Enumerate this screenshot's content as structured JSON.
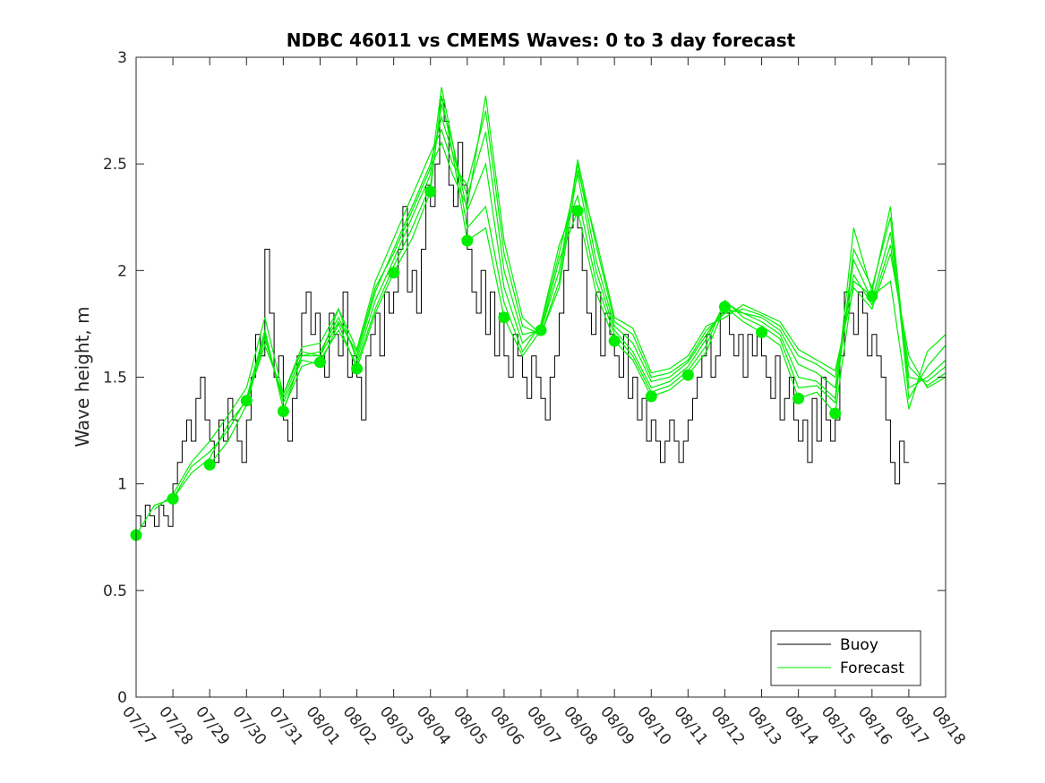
{
  "chart_data": {
    "type": "line",
    "title": "NDBC 46011 vs CMEMS Waves: 0 to 3 day forecast",
    "xlabel": "",
    "ylabel": "Wave height, m",
    "x_tick_labels": [
      "07/27",
      "07/28",
      "07/29",
      "07/30",
      "07/31",
      "08/01",
      "08/02",
      "08/03",
      "08/04",
      "08/05",
      "08/06",
      "08/07",
      "08/08",
      "08/09",
      "08/10",
      "08/11",
      "08/12",
      "08/13",
      "08/14",
      "08/15",
      "08/16",
      "08/17",
      "08/18"
    ],
    "xlim": [
      0,
      22
    ],
    "ylim": [
      0,
      3
    ],
    "y_ticks": [
      0,
      0.5,
      1,
      1.5,
      2,
      2.5,
      3
    ],
    "y_tick_labels": [
      "0",
      "0.5",
      "1",
      "1.5",
      "2",
      "2.5",
      "3"
    ],
    "legend": {
      "position": "bottom-right",
      "entries": [
        "Buoy",
        "Forecast"
      ]
    },
    "colors": {
      "buoy": "#000000",
      "forecast": "#00ee00"
    },
    "buoy_day_values": [
      [
        0.85,
        0.8,
        0.9,
        0.85,
        0.8,
        0.9,
        0.85,
        0.8
      ],
      [
        1.0,
        1.1,
        1.2,
        1.3,
        1.2,
        1.4,
        1.5,
        1.3
      ],
      [
        1.2,
        1.1,
        1.3,
        1.2,
        1.4,
        1.3,
        1.2,
        1.1
      ],
      [
        1.3,
        1.5,
        1.7,
        1.6,
        2.1,
        1.8,
        1.5,
        1.6
      ],
      [
        1.3,
        1.2,
        1.4,
        1.6,
        1.8,
        1.9,
        1.7,
        1.8
      ],
      [
        1.6,
        1.5,
        1.8,
        1.7,
        1.6,
        1.9,
        1.5,
        1.6
      ],
      [
        1.5,
        1.3,
        1.6,
        1.7,
        1.8,
        1.6,
        1.9,
        1.8
      ],
      [
        1.9,
        2.1,
        2.3,
        1.9,
        2.0,
        1.8,
        2.1,
        2.4
      ],
      [
        2.3,
        2.5,
        2.8,
        2.7,
        2.4,
        2.3,
        2.6,
        2.4
      ],
      [
        2.1,
        1.9,
        1.8,
        2.0,
        1.7,
        1.9,
        1.6,
        1.8
      ],
      [
        1.6,
        1.5,
        1.7,
        1.6,
        1.5,
        1.4,
        1.6,
        1.5
      ],
      [
        1.4,
        1.3,
        1.5,
        1.6,
        1.8,
        2.0,
        2.2,
        2.3
      ],
      [
        2.2,
        2.0,
        1.8,
        1.7,
        1.9,
        1.6,
        1.8,
        1.7
      ],
      [
        1.6,
        1.5,
        1.7,
        1.4,
        1.5,
        1.3,
        1.4,
        1.2
      ],
      [
        1.3,
        1.2,
        1.1,
        1.2,
        1.3,
        1.2,
        1.1,
        1.2
      ],
      [
        1.3,
        1.4,
        1.5,
        1.6,
        1.7,
        1.5,
        1.6,
        1.8
      ],
      [
        1.8,
        1.7,
        1.6,
        1.7,
        1.5,
        1.7,
        1.6,
        1.7
      ],
      [
        1.6,
        1.5,
        1.4,
        1.6,
        1.3,
        1.4,
        1.5,
        1.3
      ],
      [
        1.2,
        1.3,
        1.1,
        1.4,
        1.2,
        1.5,
        1.3,
        1.2
      ],
      [
        1.3,
        1.6,
        1.9,
        1.8,
        1.7,
        1.9,
        1.8,
        1.6
      ],
      [
        1.7,
        1.6,
        1.5,
        1.3,
        1.1,
        1.0,
        1.2,
        1.1
      ]
    ],
    "forecast_daily_points": [
      {
        "x": 0,
        "y": 0.76
      },
      {
        "x": 1,
        "y": 0.93
      },
      {
        "x": 2,
        "y": 1.09
      },
      {
        "x": 3,
        "y": 1.39
      },
      {
        "x": 4,
        "y": 1.34
      },
      {
        "x": 5,
        "y": 1.57
      },
      {
        "x": 6,
        "y": 1.54
      },
      {
        "x": 7,
        "y": 1.99
      },
      {
        "x": 8,
        "y": 2.37
      },
      {
        "x": 9,
        "y": 2.14
      },
      {
        "x": 10,
        "y": 1.78
      },
      {
        "x": 11,
        "y": 1.72
      },
      {
        "x": 12,
        "y": 2.28
      },
      {
        "x": 13,
        "y": 1.67
      },
      {
        "x": 14,
        "y": 1.41
      },
      {
        "x": 15,
        "y": 1.51
      },
      {
        "x": 16,
        "y": 1.83
      },
      {
        "x": 17,
        "y": 1.71
      },
      {
        "x": 18,
        "y": 1.4
      },
      {
        "x": 19,
        "y": 1.33
      },
      {
        "x": 20,
        "y": 1.88
      }
    ],
    "forecast_series": [
      {
        "name": "Forecast run 1",
        "x": [
          0,
          0.5,
          1,
          1.5,
          2,
          2.5,
          3,
          3.5,
          4,
          4.5,
          5,
          5.5,
          6,
          6.5,
          7,
          7.5,
          8,
          8.3,
          8.6,
          9,
          9.5,
          10,
          10.5,
          11,
          11.5,
          12,
          12.5,
          13,
          13.5,
          14,
          14.5,
          15,
          15.5,
          16,
          16.5,
          17,
          17.5,
          18,
          18.5,
          19,
          19.5,
          20,
          20.5,
          21,
          21.5,
          22
        ],
        "y": [
          0.76,
          0.9,
          0.93,
          1.05,
          1.12,
          1.28,
          1.39,
          1.7,
          1.38,
          1.58,
          1.56,
          1.75,
          1.54,
          1.8,
          1.99,
          2.15,
          2.37,
          2.82,
          2.55,
          2.14,
          2.2,
          1.78,
          1.6,
          1.72,
          2.05,
          2.28,
          1.9,
          1.67,
          1.58,
          1.41,
          1.44,
          1.51,
          1.62,
          1.83,
          1.76,
          1.71,
          1.65,
          1.4,
          1.43,
          1.33,
          1.95,
          1.88,
          1.95,
          1.35,
          1.62,
          1.7
        ]
      },
      {
        "name": "Forecast run 2",
        "x": [
          0.5,
          1,
          1.5,
          2,
          2.5,
          3,
          3.5,
          4,
          4.5,
          5,
          5.5,
          6,
          6.5,
          7,
          7.5,
          8,
          8.3,
          8.6,
          9,
          9.5,
          10,
          10.5,
          11,
          11.5,
          12,
          12.5,
          13,
          13.5,
          14,
          14.5,
          15,
          15.5,
          16,
          16.5,
          17,
          17.5,
          18,
          18.5,
          19,
          19.5,
          20,
          20.5,
          21,
          21.5,
          22
        ],
        "y": [
          0.88,
          0.95,
          1.1,
          1.2,
          1.32,
          1.45,
          1.78,
          1.42,
          1.62,
          1.6,
          1.82,
          1.58,
          1.86,
          2.05,
          2.25,
          2.45,
          2.86,
          2.6,
          2.2,
          2.3,
          1.85,
          1.62,
          1.75,
          2.12,
          2.35,
          1.95,
          1.7,
          1.6,
          1.43,
          1.46,
          1.53,
          1.65,
          1.86,
          1.78,
          1.74,
          1.68,
          1.45,
          1.46,
          1.38,
          2.1,
          1.92,
          2.25,
          1.4,
          1.55,
          1.65
        ]
      },
      {
        "name": "Forecast run 3",
        "x": [
          1,
          1.5,
          2,
          2.5,
          3,
          3.5,
          4,
          4.5,
          5,
          5.5,
          6,
          6.5,
          7,
          7.5,
          8,
          8.3,
          8.6,
          9,
          9.5,
          10,
          10.5,
          11,
          11.5,
          12,
          12.5,
          13,
          13.5,
          14,
          14.5,
          15,
          15.5,
          16,
          16.5,
          17,
          17.5,
          18,
          18.5,
          19,
          19.5,
          20,
          20.5,
          21,
          21.5,
          22
        ],
        "y": [
          0.93,
          1.08,
          1.15,
          1.25,
          1.4,
          1.72,
          1.35,
          1.55,
          1.58,
          1.72,
          1.56,
          1.82,
          2.02,
          2.2,
          2.4,
          2.78,
          2.6,
          2.28,
          2.5,
          1.92,
          1.66,
          1.74,
          2.08,
          2.45,
          2.0,
          1.72,
          1.62,
          1.45,
          1.48,
          1.55,
          1.68,
          1.85,
          1.8,
          1.76,
          1.7,
          1.5,
          1.48,
          1.4,
          2.2,
          1.9,
          2.3,
          1.45,
          1.5,
          1.58
        ]
      },
      {
        "name": "Forecast run 4",
        "x": [
          2,
          2.5,
          3,
          3.5,
          4,
          4.5,
          5,
          5.5,
          6,
          6.5,
          7,
          7.5,
          8,
          8.3,
          8.6,
          9,
          9.5,
          10,
          10.5,
          11,
          11.5,
          12,
          12.5,
          13,
          13.5,
          14,
          14.5,
          15,
          15.5,
          16,
          16.5,
          17,
          17.5,
          18,
          18.5,
          19,
          19.5,
          20,
          20.5,
          21,
          21.5,
          22
        ],
        "y": [
          1.09,
          1.2,
          1.37,
          1.68,
          1.4,
          1.6,
          1.62,
          1.78,
          1.6,
          1.9,
          2.1,
          2.3,
          2.5,
          2.72,
          2.55,
          2.35,
          2.65,
          2.0,
          1.7,
          1.72,
          2.0,
          2.5,
          2.05,
          1.74,
          1.66,
          1.48,
          1.5,
          1.57,
          1.7,
          1.82,
          1.8,
          1.78,
          1.72,
          1.56,
          1.52,
          1.45,
          2.05,
          1.86,
          2.18,
          1.5,
          1.48,
          1.55
        ]
      },
      {
        "name": "Forecast run 5",
        "x": [
          3,
          3.5,
          4,
          4.5,
          5,
          5.5,
          6,
          6.5,
          7,
          7.5,
          8,
          8.3,
          8.6,
          9,
          9.5,
          10,
          10.5,
          11,
          11.5,
          12,
          12.5,
          13,
          13.5,
          14,
          14.5,
          15,
          15.5,
          16,
          16.5,
          17,
          17.5,
          18,
          18.5,
          19,
          19.5,
          20,
          20.5,
          21,
          21.5,
          22
        ],
        "y": [
          1.39,
          1.65,
          1.42,
          1.64,
          1.66,
          1.82,
          1.63,
          1.95,
          2.15,
          2.35,
          2.55,
          2.66,
          2.5,
          2.4,
          2.75,
          2.08,
          1.74,
          1.7,
          1.95,
          2.52,
          2.12,
          1.76,
          1.7,
          1.5,
          1.52,
          1.58,
          1.72,
          1.8,
          1.82,
          1.79,
          1.74,
          1.6,
          1.56,
          1.5,
          1.98,
          1.84,
          2.12,
          1.55,
          1.46,
          1.52
        ]
      },
      {
        "name": "Forecast run 6",
        "x": [
          4,
          4.5,
          5,
          5.5,
          6,
          6.5,
          7,
          7.5,
          8,
          8.3,
          8.6,
          9,
          9.5,
          10,
          10.5,
          11,
          11.5,
          12,
          12.5,
          13,
          13.5,
          14,
          14.5,
          15,
          15.5,
          16,
          16.5,
          17,
          17.5,
          18,
          18.5,
          19,
          19.5,
          20,
          20.5,
          21,
          21.5,
          22
        ],
        "y": [
          1.34,
          1.6,
          1.6,
          1.76,
          1.62,
          1.92,
          2.08,
          2.28,
          2.48,
          2.6,
          2.45,
          2.3,
          2.82,
          2.14,
          1.78,
          1.7,
          1.92,
          2.47,
          2.15,
          1.78,
          1.73,
          1.52,
          1.54,
          1.6,
          1.74,
          1.78,
          1.84,
          1.8,
          1.76,
          1.63,
          1.58,
          1.53,
          1.92,
          1.82,
          2.08,
          1.6,
          1.45,
          1.5
        ]
      }
    ]
  }
}
